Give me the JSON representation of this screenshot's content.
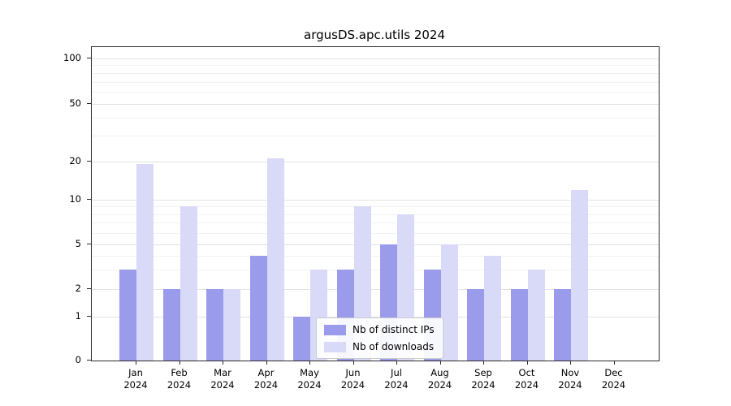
{
  "chart_data": {
    "type": "bar",
    "title": "argusDS.apc.utils 2024",
    "categories": [
      "Jan 2024",
      "Feb 2024",
      "Mar 2024",
      "Apr 2024",
      "May 2024",
      "Jun 2024",
      "Jul 2024",
      "Aug 2024",
      "Sep 2024",
      "Oct 2024",
      "Nov 2024",
      "Dec 2024"
    ],
    "series": [
      {
        "name": "Nb of distinct IPs",
        "color": "#9b9beb",
        "values": [
          3,
          2,
          2,
          4,
          1,
          3,
          5,
          3,
          2,
          2,
          2,
          0
        ]
      },
      {
        "name": "Nb of downloads",
        "color": "#d9d9f8",
        "values": [
          19,
          9,
          2,
          21,
          3,
          9,
          8,
          5,
          4,
          3,
          12,
          0
        ]
      }
    ],
    "xlabel": "",
    "ylabel": "",
    "y_ticks": [
      0,
      1,
      2,
      5,
      10,
      20,
      50,
      100
    ],
    "y_minor_ticks": [
      3,
      4,
      6,
      7,
      8,
      9,
      30,
      40,
      60,
      70,
      80,
      90
    ],
    "y_scale": "log above 1, linear 0-1 (symlog)",
    "ylim": [
      0,
      130
    ],
    "grid": true,
    "legend": {
      "position": "lower center inside plot",
      "entries": [
        "Nb of distinct IPs",
        "Nb of downloads"
      ]
    }
  }
}
